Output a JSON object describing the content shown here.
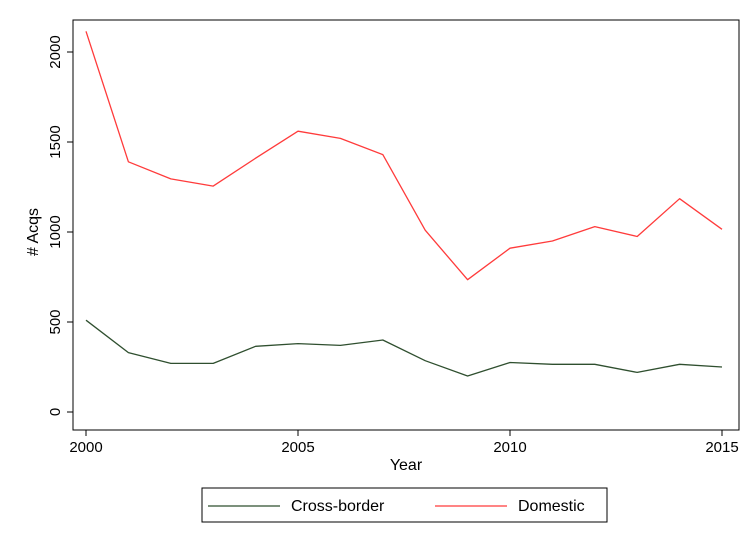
{
  "chart_data": {
    "type": "line",
    "title": "",
    "xlabel": "Year",
    "ylabel": "# Acqs",
    "x": [
      2000,
      2001,
      2002,
      2003,
      2004,
      2005,
      2006,
      2007,
      2008,
      2009,
      2010,
      2011,
      2012,
      2013,
      2014,
      2015
    ],
    "xlim": [
      2000,
      2015
    ],
    "ylim": [
      0,
      2100
    ],
    "xticks": [
      2000,
      2005,
      2010,
      2015
    ],
    "yticks": [
      0,
      500,
      1000,
      1500,
      2000
    ],
    "x_tick_labels": [
      "2000",
      "2005",
      "2010",
      "2015"
    ],
    "y_tick_labels": [
      "0",
      "500",
      "1000",
      "1500",
      "2000"
    ],
    "grid": false,
    "legend_position": "bottom",
    "series": [
      {
        "name": "Cross-border",
        "color": "#2f4f2f",
        "values": [
          510,
          330,
          270,
          270,
          365,
          380,
          370,
          400,
          285,
          200,
          275,
          265,
          265,
          220,
          265,
          250
        ]
      },
      {
        "name": "Domestic",
        "color": "#ff3b3b",
        "values": [
          2115,
          1390,
          1295,
          1255,
          1410,
          1560,
          1520,
          1430,
          1010,
          735,
          910,
          950,
          1030,
          975,
          1185,
          1015
        ]
      }
    ]
  }
}
